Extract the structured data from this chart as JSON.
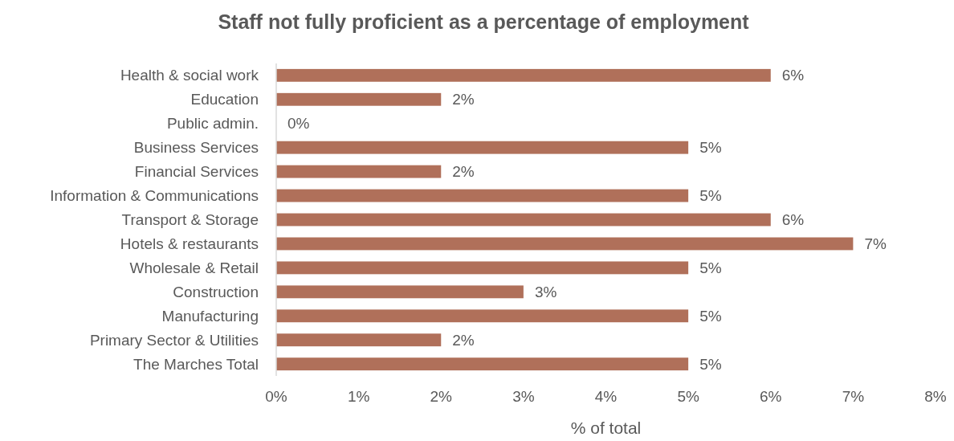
{
  "chart_data": {
    "type": "bar",
    "orientation": "horizontal",
    "title": "Staff not fully proficient as a percentage of employment",
    "xlabel": "% of total",
    "categories": [
      "Health & social work",
      "Education",
      "Public admin.",
      "Business Services",
      "Financial Services",
      "Information & Communications",
      "Transport & Storage",
      "Hotels & restaurants",
      "Wholesale & Retail",
      "Construction",
      "Manufacturing",
      "Primary Sector & Utilities",
      "The Marches Total"
    ],
    "values": [
      6,
      2,
      0,
      5,
      2,
      5,
      6,
      7,
      5,
      3,
      5,
      2,
      5
    ],
    "value_labels": [
      "6%",
      "2%",
      "0%",
      "5%",
      "2%",
      "5%",
      "6%",
      "7%",
      "5%",
      "3%",
      "5%",
      "2%",
      "5%"
    ],
    "color": "#b0705a",
    "xlim": [
      0,
      8
    ],
    "xticks": [
      {
        "value": 0,
        "label": "0%"
      },
      {
        "value": 1,
        "label": "1%"
      },
      {
        "value": 2,
        "label": "2%"
      },
      {
        "value": 3,
        "label": "3%"
      },
      {
        "value": 4,
        "label": "4%"
      },
      {
        "value": 5,
        "label": "5%"
      },
      {
        "value": 6,
        "label": "6%"
      },
      {
        "value": 7,
        "label": "7%"
      },
      {
        "value": 8,
        "label": "8%"
      }
    ],
    "grid": false
  }
}
